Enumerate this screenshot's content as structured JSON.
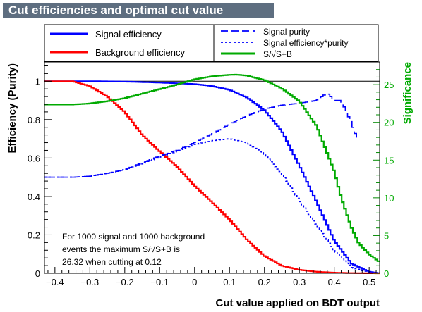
{
  "chart_data": {
    "type": "line",
    "title": "Cut efficiencies and optimal cut value",
    "xlabel": "Cut value applied on BDT output",
    "ylabel": "Efficiency (Purity)",
    "y2label": "Significance",
    "xlim": [
      -0.43,
      0.53
    ],
    "ylim": [
      0,
      1.1
    ],
    "y2lim": [
      0,
      28
    ],
    "x_ticks": [
      -0.4,
      -0.3,
      -0.2,
      -0.1,
      0,
      0.1,
      0.2,
      0.3,
      0.4,
      0.5
    ],
    "x_tick_labels": [
      "−0.4",
      "−0.3",
      "−0.2",
      "−0.1",
      "0",
      "0.1",
      "0.2",
      "0.3",
      "0.4",
      "0.5"
    ],
    "y_ticks": [
      0,
      0.2,
      0.4,
      0.6,
      0.8,
      1
    ],
    "y_tick_labels": [
      "0",
      "0.2",
      "0.4",
      "0.6",
      "0.8",
      "1"
    ],
    "y2_ticks": [
      0,
      5,
      10,
      15,
      20,
      25
    ],
    "y2_tick_labels": [
      "0",
      "5",
      "10",
      "15",
      "20",
      "25"
    ],
    "grid": false,
    "legend": [
      {
        "label": "Signal efficiency",
        "color": "#0000ff",
        "style": "solid",
        "column": "left"
      },
      {
        "label": "Background efficiency",
        "color": "#ff0000",
        "style": "solid",
        "column": "left"
      },
      {
        "label": "Signal purity",
        "color": "#0000ff",
        "style": "dashed",
        "column": "right"
      },
      {
        "label": "Signal efficiency*purity",
        "color": "#0000ff",
        "style": "dotted",
        "column": "right"
      },
      {
        "label": "S/√S+B",
        "color": "#00aa00",
        "style": "solid",
        "column": "right"
      }
    ],
    "annotation_lines": [
      "For 1000 signal and 1000 background",
      "events the maximum S/√S+B is",
      "26.32 when cutting at  0.12"
    ],
    "series": [
      {
        "name": "Signal efficiency",
        "axis": "left",
        "color": "#0000ff",
        "x": [
          -0.43,
          -0.3,
          -0.2,
          -0.1,
          0.0,
          0.05,
          0.1,
          0.15,
          0.2,
          0.25,
          0.3,
          0.35,
          0.4,
          0.45,
          0.5,
          0.53
        ],
        "y": [
          1.0,
          1.0,
          0.998,
          0.993,
          0.985,
          0.975,
          0.955,
          0.915,
          0.85,
          0.74,
          0.56,
          0.37,
          0.17,
          0.05,
          0.008,
          0.0
        ]
      },
      {
        "name": "Background efficiency",
        "axis": "left",
        "color": "#ff0000",
        "x": [
          -0.43,
          -0.35,
          -0.3,
          -0.25,
          -0.2,
          -0.15,
          -0.1,
          -0.05,
          0.0,
          0.05,
          0.1,
          0.15,
          0.2,
          0.25,
          0.3,
          0.35,
          0.4,
          0.45,
          0.53
        ],
        "y": [
          1.0,
          1.0,
          0.975,
          0.92,
          0.84,
          0.72,
          0.635,
          0.555,
          0.455,
          0.37,
          0.28,
          0.175,
          0.09,
          0.04,
          0.018,
          0.008,
          0.003,
          0.001,
          0.0
        ]
      },
      {
        "name": "Signal purity",
        "axis": "left",
        "color": "#0000ff",
        "x": [
          -0.43,
          -0.35,
          -0.3,
          -0.25,
          -0.2,
          -0.15,
          -0.1,
          -0.05,
          0.0,
          0.05,
          0.1,
          0.15,
          0.2,
          0.25,
          0.3,
          0.35,
          0.38,
          0.4,
          0.42,
          0.45,
          0.47
        ],
        "y": [
          0.5,
          0.5,
          0.505,
          0.52,
          0.54,
          0.575,
          0.61,
          0.64,
          0.68,
          0.725,
          0.775,
          0.82,
          0.855,
          0.875,
          0.885,
          0.9,
          0.94,
          0.9,
          0.9,
          0.78,
          0.68
        ]
      },
      {
        "name": "Signal efficiency*purity",
        "axis": "left",
        "color": "#0000ff",
        "x": [
          -0.43,
          -0.35,
          -0.3,
          -0.25,
          -0.2,
          -0.15,
          -0.1,
          -0.05,
          0.0,
          0.05,
          0.1,
          0.15,
          0.2,
          0.25,
          0.3,
          0.35,
          0.4,
          0.45,
          0.5,
          0.53
        ],
        "y": [
          0.5,
          0.5,
          0.505,
          0.52,
          0.54,
          0.57,
          0.605,
          0.635,
          0.67,
          0.69,
          0.7,
          0.68,
          0.62,
          0.52,
          0.38,
          0.25,
          0.12,
          0.03,
          0.005,
          0.0
        ]
      },
      {
        "name": "S/√S+B",
        "axis": "right",
        "color": "#00aa00",
        "x": [
          -0.43,
          -0.35,
          -0.3,
          -0.25,
          -0.2,
          -0.15,
          -0.1,
          -0.05,
          0.0,
          0.05,
          0.1,
          0.12,
          0.15,
          0.2,
          0.25,
          0.3,
          0.35,
          0.4,
          0.42,
          0.45,
          0.47,
          0.5,
          0.53
        ],
        "y": [
          22.36,
          22.36,
          22.5,
          22.8,
          23.2,
          23.8,
          24.4,
          25.0,
          25.7,
          26.1,
          26.3,
          26.32,
          26.2,
          25.6,
          24.5,
          22.8,
          19.5,
          13.5,
          10.0,
          6.0,
          4.0,
          2.5,
          1.5
        ]
      }
    ]
  }
}
